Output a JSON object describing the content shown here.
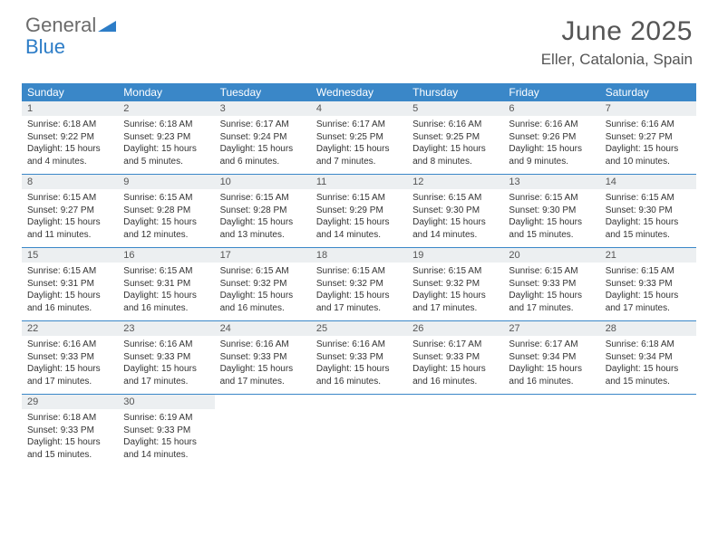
{
  "logo": {
    "line1": "General",
    "line2": "Blue"
  },
  "title": "June 2025",
  "location": "Eller, Catalonia, Spain",
  "header_bg": "#3a87c8",
  "daynum_bg": "#eceff1",
  "border_color": "#3a87c8",
  "dayNames": [
    "Sunday",
    "Monday",
    "Tuesday",
    "Wednesday",
    "Thursday",
    "Friday",
    "Saturday"
  ],
  "weeks": [
    [
      {
        "n": "1",
        "sr": "6:18 AM",
        "ss": "9:22 PM",
        "dl": "15 hours and 4 minutes."
      },
      {
        "n": "2",
        "sr": "6:18 AM",
        "ss": "9:23 PM",
        "dl": "15 hours and 5 minutes."
      },
      {
        "n": "3",
        "sr": "6:17 AM",
        "ss": "9:24 PM",
        "dl": "15 hours and 6 minutes."
      },
      {
        "n": "4",
        "sr": "6:17 AM",
        "ss": "9:25 PM",
        "dl": "15 hours and 7 minutes."
      },
      {
        "n": "5",
        "sr": "6:16 AM",
        "ss": "9:25 PM",
        "dl": "15 hours and 8 minutes."
      },
      {
        "n": "6",
        "sr": "6:16 AM",
        "ss": "9:26 PM",
        "dl": "15 hours and 9 minutes."
      },
      {
        "n": "7",
        "sr": "6:16 AM",
        "ss": "9:27 PM",
        "dl": "15 hours and 10 minutes."
      }
    ],
    [
      {
        "n": "8",
        "sr": "6:15 AM",
        "ss": "9:27 PM",
        "dl": "15 hours and 11 minutes."
      },
      {
        "n": "9",
        "sr": "6:15 AM",
        "ss": "9:28 PM",
        "dl": "15 hours and 12 minutes."
      },
      {
        "n": "10",
        "sr": "6:15 AM",
        "ss": "9:28 PM",
        "dl": "15 hours and 13 minutes."
      },
      {
        "n": "11",
        "sr": "6:15 AM",
        "ss": "9:29 PM",
        "dl": "15 hours and 14 minutes."
      },
      {
        "n": "12",
        "sr": "6:15 AM",
        "ss": "9:30 PM",
        "dl": "15 hours and 14 minutes."
      },
      {
        "n": "13",
        "sr": "6:15 AM",
        "ss": "9:30 PM",
        "dl": "15 hours and 15 minutes."
      },
      {
        "n": "14",
        "sr": "6:15 AM",
        "ss": "9:30 PM",
        "dl": "15 hours and 15 minutes."
      }
    ],
    [
      {
        "n": "15",
        "sr": "6:15 AM",
        "ss": "9:31 PM",
        "dl": "15 hours and 16 minutes."
      },
      {
        "n": "16",
        "sr": "6:15 AM",
        "ss": "9:31 PM",
        "dl": "15 hours and 16 minutes."
      },
      {
        "n": "17",
        "sr": "6:15 AM",
        "ss": "9:32 PM",
        "dl": "15 hours and 16 minutes."
      },
      {
        "n": "18",
        "sr": "6:15 AM",
        "ss": "9:32 PM",
        "dl": "15 hours and 17 minutes."
      },
      {
        "n": "19",
        "sr": "6:15 AM",
        "ss": "9:32 PM",
        "dl": "15 hours and 17 minutes."
      },
      {
        "n": "20",
        "sr": "6:15 AM",
        "ss": "9:33 PM",
        "dl": "15 hours and 17 minutes."
      },
      {
        "n": "21",
        "sr": "6:15 AM",
        "ss": "9:33 PM",
        "dl": "15 hours and 17 minutes."
      }
    ],
    [
      {
        "n": "22",
        "sr": "6:16 AM",
        "ss": "9:33 PM",
        "dl": "15 hours and 17 minutes."
      },
      {
        "n": "23",
        "sr": "6:16 AM",
        "ss": "9:33 PM",
        "dl": "15 hours and 17 minutes."
      },
      {
        "n": "24",
        "sr": "6:16 AM",
        "ss": "9:33 PM",
        "dl": "15 hours and 17 minutes."
      },
      {
        "n": "25",
        "sr": "6:16 AM",
        "ss": "9:33 PM",
        "dl": "15 hours and 16 minutes."
      },
      {
        "n": "26",
        "sr": "6:17 AM",
        "ss": "9:33 PM",
        "dl": "15 hours and 16 minutes."
      },
      {
        "n": "27",
        "sr": "6:17 AM",
        "ss": "9:34 PM",
        "dl": "15 hours and 16 minutes."
      },
      {
        "n": "28",
        "sr": "6:18 AM",
        "ss": "9:34 PM",
        "dl": "15 hours and 15 minutes."
      }
    ],
    [
      {
        "n": "29",
        "sr": "6:18 AM",
        "ss": "9:33 PM",
        "dl": "15 hours and 15 minutes."
      },
      {
        "n": "30",
        "sr": "6:19 AM",
        "ss": "9:33 PM",
        "dl": "15 hours and 14 minutes."
      },
      null,
      null,
      null,
      null,
      null
    ]
  ],
  "labels": {
    "sunrise": "Sunrise:",
    "sunset": "Sunset:",
    "daylight": "Daylight:"
  }
}
